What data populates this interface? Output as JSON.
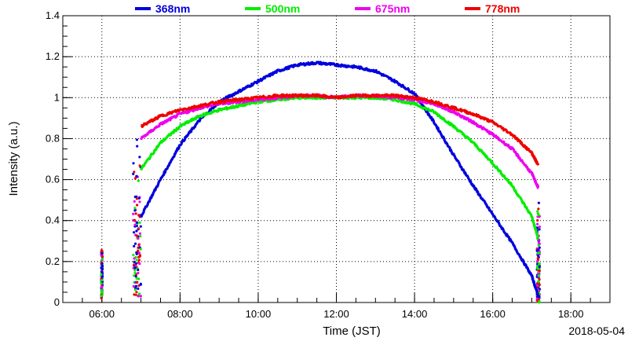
{
  "chart_data": {
    "type": "line",
    "title": "",
    "xlabel": "Time (JST)",
    "ylabel": "Intensity (a.u.)",
    "date": "2018-05-04",
    "xlim": [
      "05:00",
      "19:00"
    ],
    "ylim": [
      0,
      1.4
    ],
    "grid": true,
    "legend_position": "top",
    "x_ticks": [
      "06:00",
      "08:00",
      "10:00",
      "12:00",
      "14:00",
      "16:00",
      "18:00"
    ],
    "y_ticks": [
      "0",
      "0.2",
      "0.4",
      "0.6",
      "0.8",
      "1",
      "1.2",
      "1.4"
    ],
    "series": [
      {
        "name": "368nm",
        "color": "#0000dd",
        "x": [
          "07:00",
          "07:30",
          "08:00",
          "08:30",
          "09:00",
          "09:30",
          "10:00",
          "10:30",
          "11:00",
          "11:30",
          "12:00",
          "12:30",
          "13:00",
          "13:30",
          "14:00",
          "14:30",
          "15:00",
          "15:30",
          "16:00",
          "16:30",
          "17:00",
          "17:10"
        ],
        "y": [
          0.42,
          0.6,
          0.77,
          0.89,
          0.98,
          1.03,
          1.08,
          1.13,
          1.16,
          1.17,
          1.16,
          1.15,
          1.13,
          1.08,
          1.02,
          0.88,
          0.72,
          0.57,
          0.43,
          0.29,
          0.13,
          0.03
        ]
      },
      {
        "name": "500nm",
        "color": "#00ee00",
        "x": [
          "07:00",
          "07:30",
          "08:00",
          "08:30",
          "09:00",
          "09:30",
          "10:00",
          "10:30",
          "11:00",
          "11:30",
          "12:00",
          "12:30",
          "13:00",
          "13:30",
          "14:00",
          "14:30",
          "15:00",
          "15:30",
          "16:00",
          "16:30",
          "17:00",
          "17:10"
        ],
        "y": [
          0.65,
          0.78,
          0.86,
          0.91,
          0.94,
          0.96,
          0.98,
          0.99,
          1.0,
          1.0,
          1.0,
          1.0,
          1.0,
          0.99,
          0.97,
          0.93,
          0.86,
          0.78,
          0.68,
          0.57,
          0.42,
          0.31
        ]
      },
      {
        "name": "675nm",
        "color": "#ee00ee",
        "x": [
          "07:00",
          "07:30",
          "08:00",
          "08:30",
          "09:00",
          "09:30",
          "10:00",
          "10:30",
          "11:00",
          "11:30",
          "12:00",
          "12:30",
          "13:00",
          "13:30",
          "14:00",
          "14:30",
          "15:00",
          "15:30",
          "16:00",
          "16:30",
          "17:00",
          "17:10"
        ],
        "y": [
          0.8,
          0.87,
          0.92,
          0.95,
          0.97,
          0.98,
          0.99,
          1.0,
          1.01,
          1.01,
          1.0,
          1.01,
          1.01,
          1.0,
          0.99,
          0.97,
          0.93,
          0.88,
          0.82,
          0.75,
          0.63,
          0.56
        ]
      },
      {
        "name": "778nm",
        "color": "#ee0000",
        "x": [
          "07:00",
          "07:30",
          "08:00",
          "08:30",
          "09:00",
          "09:30",
          "10:00",
          "10:30",
          "11:00",
          "11:30",
          "12:00",
          "12:30",
          "13:00",
          "13:30",
          "14:00",
          "14:30",
          "15:00",
          "15:30",
          "16:00",
          "16:30",
          "17:00",
          "17:10"
        ],
        "y": [
          0.86,
          0.91,
          0.94,
          0.96,
          0.98,
          0.99,
          1.0,
          1.01,
          1.01,
          1.01,
          1.0,
          1.01,
          1.01,
          1.01,
          1.0,
          0.98,
          0.95,
          0.92,
          0.88,
          0.82,
          0.73,
          0.67
        ]
      }
    ],
    "scatter_bursts": [
      {
        "time": "06:00",
        "y_range": [
          0.02,
          0.26
        ]
      },
      {
        "time_range": [
          "06:48",
          "07:00"
        ],
        "y_range": [
          0.03,
          0.86
        ]
      },
      {
        "time_range": [
          "17:08",
          "17:12"
        ],
        "y_range": [
          0.0,
          0.6
        ]
      }
    ]
  }
}
